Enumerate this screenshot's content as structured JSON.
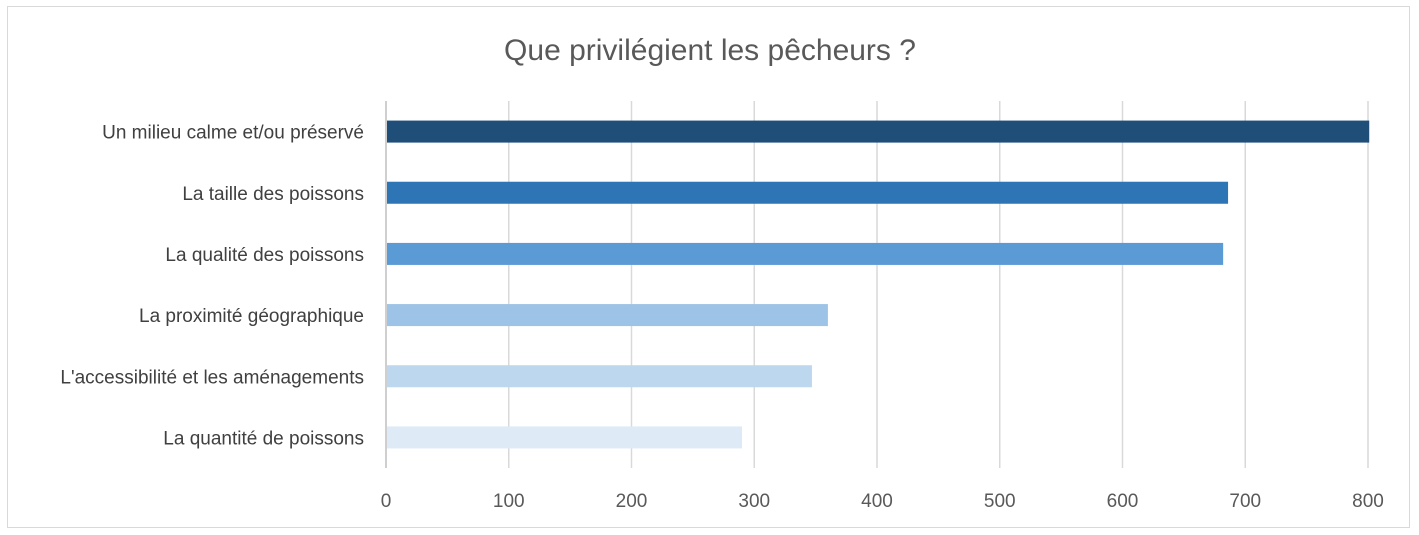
{
  "chart_data": {
    "type": "bar",
    "orientation": "horizontal",
    "title": "Que privilégient les pêcheurs ?",
    "xlabel": "",
    "ylabel": "",
    "categories": [
      "Un milieu calme et/ou préservé",
      "La taille des poissons",
      "La qualité des poissons",
      "La proximité géographique",
      "L'accessibilité et les aménagements",
      "La quantité de poissons"
    ],
    "values": [
      801,
      686,
      682,
      360,
      347,
      290
    ],
    "colors": [
      "#1f4e79",
      "#2e75b6",
      "#5b9bd5",
      "#9dc3e6",
      "#bdd7ee",
      "#deebf7"
    ],
    "xlim": [
      0,
      800
    ],
    "xticks": [
      "0",
      "100",
      "200",
      "300",
      "400",
      "500",
      "600",
      "700",
      "800"
    ],
    "grid": "vertical",
    "legend": "none"
  }
}
